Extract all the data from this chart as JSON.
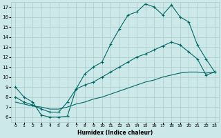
{
  "xlabel": "Humidex (Indice chaleur)",
  "background_color": "#cce8e8",
  "grid_color": "#aacccc",
  "line_color": "#006666",
  "xlim": [
    -0.5,
    23.5
  ],
  "ylim": [
    5.5,
    17.5
  ],
  "xticks": [
    0,
    1,
    2,
    3,
    4,
    5,
    6,
    7,
    8,
    9,
    10,
    11,
    12,
    13,
    14,
    15,
    16,
    17,
    18,
    19,
    20,
    21,
    22,
    23
  ],
  "yticks": [
    6,
    7,
    8,
    9,
    10,
    11,
    12,
    13,
    14,
    15,
    16,
    17
  ],
  "line1_x": [
    0,
    1,
    2,
    3,
    4,
    5,
    6,
    7,
    8,
    9,
    10,
    11,
    12,
    13,
    14,
    15,
    16,
    17,
    18,
    19,
    20,
    21,
    22,
    23
  ],
  "line1_y": [
    9.0,
    8.0,
    7.5,
    6.2,
    6.0,
    6.0,
    6.1,
    8.8,
    10.3,
    11.0,
    11.5,
    13.3,
    14.8,
    16.2,
    16.5,
    17.3,
    17.0,
    16.2,
    17.2,
    16.0,
    15.5,
    13.2,
    11.8,
    10.5
  ],
  "line2_x": [
    0,
    1,
    2,
    3,
    4,
    5,
    6,
    7,
    8,
    9,
    10,
    11,
    12,
    13,
    14,
    15,
    16,
    17,
    18,
    19,
    20,
    21,
    22,
    23
  ],
  "line2_y": [
    8.0,
    7.5,
    7.2,
    6.8,
    6.5,
    6.5,
    7.5,
    8.8,
    9.2,
    9.5,
    10.0,
    10.5,
    11.0,
    11.5,
    12.0,
    12.3,
    12.7,
    13.1,
    13.5,
    13.2,
    12.5,
    11.8,
    10.2,
    10.5
  ],
  "line3_x": [
    0,
    1,
    2,
    3,
    4,
    5,
    6,
    7,
    8,
    9,
    10,
    11,
    12,
    13,
    14,
    15,
    16,
    17,
    18,
    19,
    20,
    21,
    22,
    23
  ],
  "line3_y": [
    7.5,
    7.3,
    7.1,
    7.0,
    6.8,
    6.8,
    7.0,
    7.3,
    7.5,
    7.8,
    8.0,
    8.3,
    8.6,
    8.9,
    9.2,
    9.5,
    9.7,
    10.0,
    10.2,
    10.4,
    10.5,
    10.5,
    10.4,
    10.5
  ]
}
